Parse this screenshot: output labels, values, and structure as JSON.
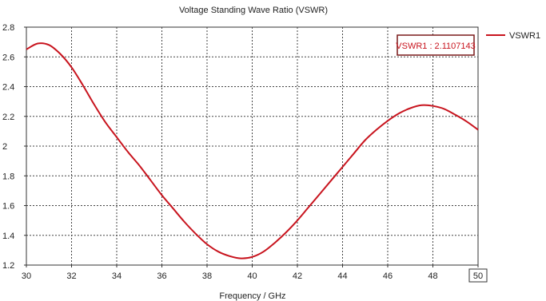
{
  "chart_data": {
    "type": "line",
    "title": "Voltage Standing Wave Ratio (VSWR)",
    "xlabel": "Frequency / GHz",
    "ylabel": "",
    "xlim": [
      30,
      50
    ],
    "ylim": [
      1.2,
      2.8
    ],
    "x_ticks": [
      30,
      32,
      34,
      36,
      38,
      40,
      42,
      44,
      46,
      48,
      50
    ],
    "y_ticks": [
      1.2,
      1.4,
      1.6,
      1.8,
      2.0,
      2.2,
      2.4,
      2.6,
      2.8
    ],
    "y_tick_labels": [
      "1.2",
      "1.4",
      "1.6",
      "1.8",
      "2",
      "2.2",
      "2.4",
      "2.6",
      "2.8"
    ],
    "highlighted_x_tick": "50",
    "grid": true,
    "legend_position": "top-right outside",
    "series": [
      {
        "name": "VSWR1",
        "color": "#c8141e",
        "x": [
          30,
          30.5,
          31,
          31.5,
          32,
          32.5,
          33,
          33.5,
          34,
          34.5,
          35,
          35.5,
          36,
          36.5,
          37,
          37.5,
          38,
          38.5,
          39,
          39.5,
          40,
          40.5,
          41,
          41.5,
          42,
          42.5,
          43,
          43.5,
          44,
          44.5,
          45,
          45.5,
          46,
          46.5,
          47,
          47.5,
          48,
          48.5,
          49,
          49.5,
          50
        ],
        "y": [
          2.65,
          2.69,
          2.68,
          2.62,
          2.53,
          2.41,
          2.28,
          2.16,
          2.06,
          1.96,
          1.87,
          1.77,
          1.67,
          1.58,
          1.49,
          1.41,
          1.34,
          1.29,
          1.26,
          1.245,
          1.255,
          1.29,
          1.35,
          1.42,
          1.5,
          1.59,
          1.68,
          1.77,
          1.86,
          1.95,
          2.04,
          2.11,
          2.17,
          2.22,
          2.255,
          2.275,
          2.27,
          2.25,
          2.21,
          2.165,
          2.11
        ]
      }
    ],
    "marker": {
      "label": "VSWR1 : 2.1107143",
      "x": 50,
      "y": 2.1107143
    }
  }
}
